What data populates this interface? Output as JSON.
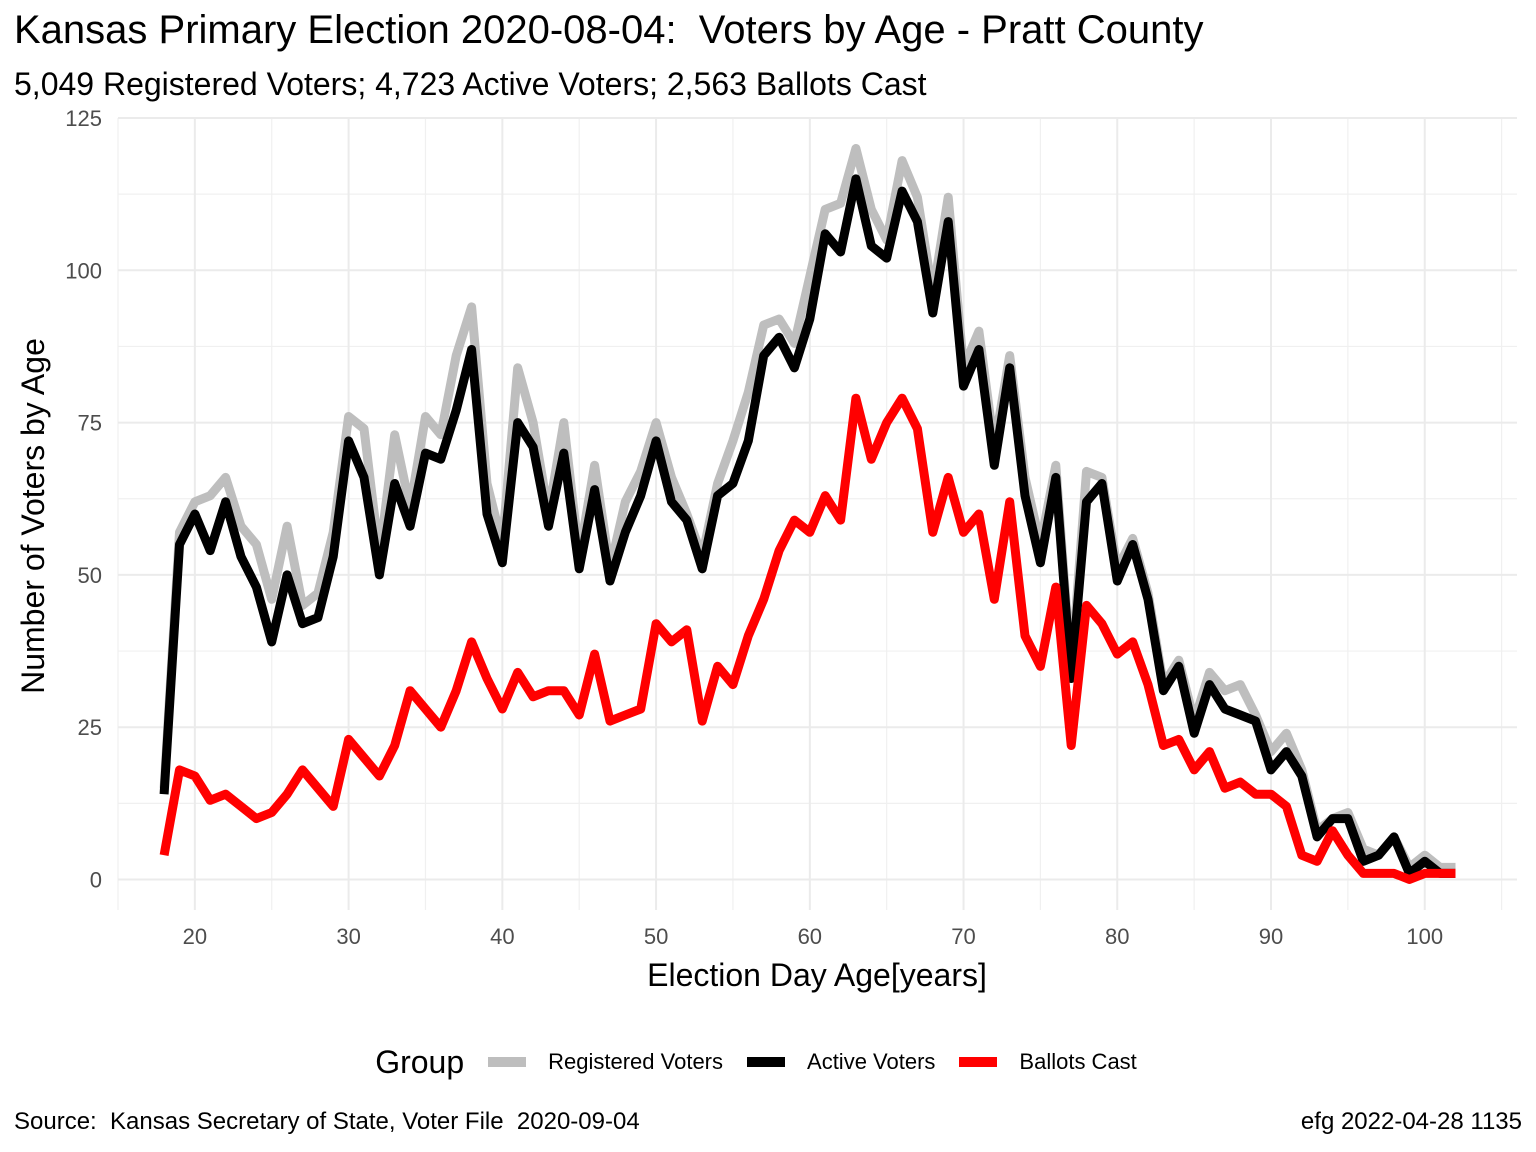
{
  "chart_data": {
    "type": "line",
    "title": "Kansas Primary Election 2020-08-04:  Voters by Age - Pratt County",
    "subtitle": "5,049 Registered Voters; 4,723 Active Voters; 2,563 Ballots Cast",
    "xlabel": "Election Day Age[years]",
    "ylabel": "Number of Voters by Age",
    "xlim": [
      15,
      106
    ],
    "ylim": [
      -5,
      125
    ],
    "x_ticks": [
      20,
      30,
      40,
      50,
      60,
      70,
      80,
      90,
      100
    ],
    "y_ticks": [
      0,
      25,
      50,
      75,
      100,
      125
    ],
    "grid": true,
    "legend_title": "Group",
    "legend_position": "bottom",
    "x": [
      18,
      19,
      20,
      21,
      22,
      23,
      24,
      25,
      26,
      27,
      28,
      29,
      30,
      31,
      32,
      33,
      34,
      35,
      36,
      37,
      38,
      39,
      40,
      41,
      42,
      43,
      44,
      45,
      46,
      47,
      48,
      49,
      50,
      51,
      52,
      53,
      54,
      55,
      56,
      57,
      58,
      59,
      60,
      61,
      62,
      63,
      64,
      65,
      66,
      67,
      68,
      69,
      70,
      71,
      72,
      73,
      74,
      75,
      76,
      77,
      78,
      79,
      80,
      81,
      82,
      83,
      84,
      85,
      86,
      87,
      88,
      89,
      90,
      91,
      92,
      93,
      94,
      95,
      96,
      97,
      98,
      99,
      100,
      101,
      102
    ],
    "series": [
      {
        "name": "Registered Voters",
        "color": "#bebebe",
        "values": [
          15,
          57,
          62,
          63,
          66,
          58,
          55,
          46,
          58,
          45,
          47,
          57,
          76,
          74,
          53,
          73,
          61,
          76,
          73,
          86,
          94,
          65,
          55,
          84,
          75,
          60,
          75,
          53,
          68,
          51,
          62,
          67,
          75,
          66,
          60,
          53,
          65,
          72,
          80,
          91,
          92,
          88,
          99,
          110,
          111,
          120,
          110,
          105,
          118,
          112,
          96,
          112,
          84,
          90,
          71,
          86,
          66,
          55,
          68,
          34,
          67,
          66,
          51,
          56,
          47,
          32,
          36,
          26,
          34,
          31,
          32,
          27,
          21,
          24,
          18,
          8,
          10,
          11,
          5,
          4,
          7,
          2,
          4,
          2,
          2
        ]
      },
      {
        "name": "Active Voters",
        "color": "#000000",
        "values": [
          14,
          55,
          60,
          54,
          62,
          53,
          48,
          39,
          50,
          42,
          43,
          53,
          72,
          66,
          50,
          65,
          58,
          70,
          69,
          77,
          87,
          60,
          52,
          75,
          71,
          58,
          70,
          51,
          64,
          49,
          57,
          63,
          72,
          62,
          59,
          51,
          63,
          65,
          72,
          86,
          89,
          84,
          92,
          106,
          103,
          115,
          104,
          102,
          113,
          108,
          93,
          108,
          81,
          87,
          68,
          84,
          63,
          52,
          66,
          33,
          62,
          65,
          49,
          55,
          46,
          31,
          35,
          24,
          32,
          28,
          27,
          26,
          18,
          21,
          17,
          7,
          10,
          10,
          3,
          4,
          7,
          1,
          3,
          1,
          1
        ]
      },
      {
        "name": "Ballots Cast",
        "color": "#ff0000",
        "values": [
          4,
          18,
          17,
          13,
          14,
          12,
          10,
          11,
          14,
          18,
          15,
          12,
          23,
          20,
          17,
          22,
          31,
          28,
          25,
          31,
          39,
          33,
          28,
          34,
          30,
          31,
          31,
          27,
          37,
          26,
          27,
          28,
          42,
          39,
          41,
          26,
          35,
          32,
          40,
          46,
          54,
          59,
          57,
          63,
          59,
          79,
          69,
          75,
          79,
          74,
          57,
          66,
          57,
          60,
          46,
          62,
          40,
          35,
          48,
          22,
          45,
          42,
          37,
          39,
          32,
          22,
          23,
          18,
          21,
          15,
          16,
          14,
          14,
          12,
          4,
          3,
          8,
          4,
          1,
          1,
          1,
          0,
          1,
          1,
          1
        ]
      }
    ]
  },
  "caption_left": "Source:  Kansas Secretary of State, Voter File  2020-09-04",
  "caption_right": "efg 2022-04-28 1135"
}
